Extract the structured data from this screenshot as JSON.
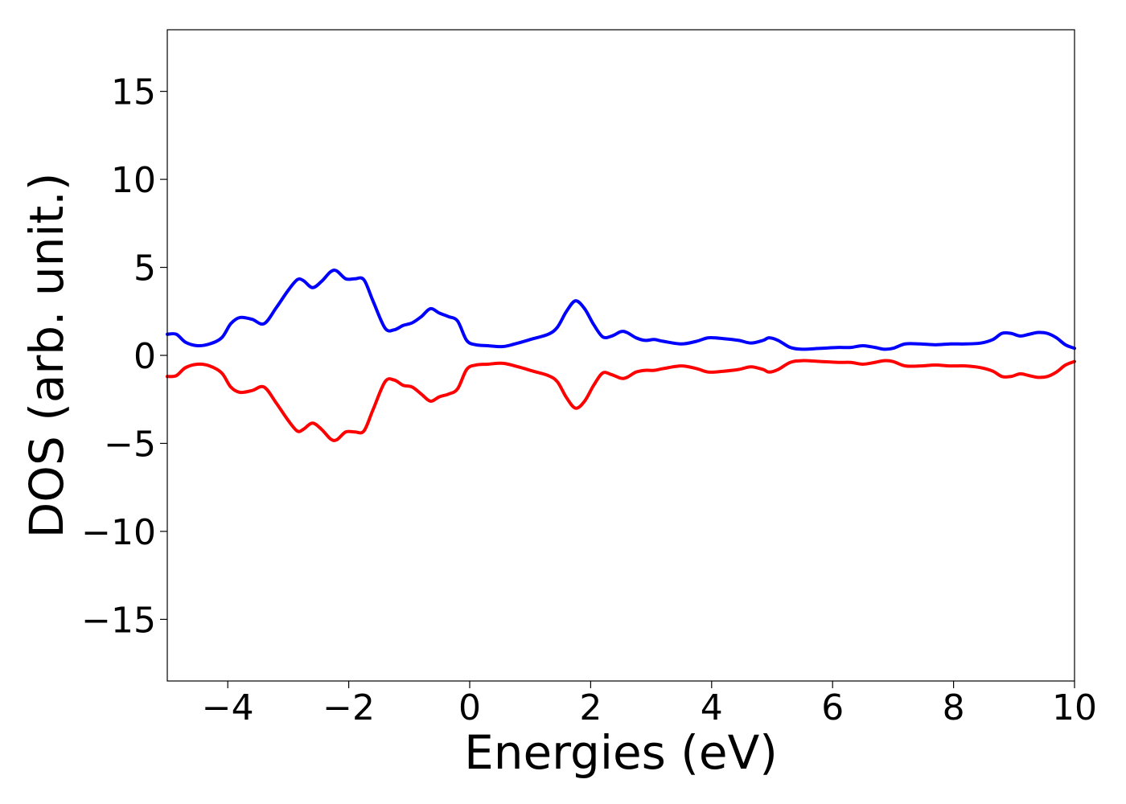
{
  "chart_data": {
    "type": "line",
    "title": "",
    "xlabel": "Energies (eV)",
    "ylabel": "DOS (arb. unit.)",
    "xlim": [
      -5,
      10
    ],
    "ylim": [
      -18.5,
      18.5
    ],
    "xticks": [
      -4,
      -2,
      0,
      2,
      4,
      6,
      8,
      10
    ],
    "yticks": [
      -15,
      -10,
      -5,
      0,
      5,
      10,
      15
    ],
    "xtick_labels": [
      "−4",
      "−2",
      "0",
      "2",
      "4",
      "6",
      "8",
      "10"
    ],
    "ytick_labels": [
      "−15",
      "−10",
      "−5",
      "0",
      "5",
      "10",
      "15"
    ],
    "grid": false,
    "legend": "none",
    "series": [
      {
        "color": "#0000ff",
        "x": [
          -5.0,
          -4.85,
          -4.7,
          -4.5,
          -4.3,
          -4.1,
          -3.95,
          -3.8,
          -3.6,
          -3.4,
          -3.2,
          -3.0,
          -2.85,
          -2.75,
          -2.6,
          -2.45,
          -2.3,
          -2.2,
          -2.05,
          -1.9,
          -1.75,
          -1.6,
          -1.4,
          -1.25,
          -1.1,
          -0.95,
          -0.8,
          -0.65,
          -0.5,
          -0.35,
          -0.2,
          -0.05,
          0.1,
          0.3,
          0.55,
          0.8,
          1.05,
          1.3,
          1.45,
          1.6,
          1.75,
          1.9,
          2.05,
          2.2,
          2.35,
          2.5,
          2.6,
          2.75,
          2.9,
          3.05,
          3.2,
          3.5,
          3.75,
          3.95,
          4.2,
          4.45,
          4.65,
          4.85,
          4.95,
          5.1,
          5.3,
          5.5,
          5.8,
          6.1,
          6.3,
          6.5,
          6.7,
          6.85,
          7.0,
          7.2,
          7.45,
          7.7,
          7.95,
          8.2,
          8.45,
          8.65,
          8.8,
          8.95,
          9.1,
          9.25,
          9.4,
          9.55,
          9.7,
          9.85,
          10.0
        ],
        "values": [
          1.2,
          1.2,
          0.75,
          0.55,
          0.65,
          1.0,
          1.8,
          2.15,
          2.05,
          1.8,
          2.7,
          3.7,
          4.3,
          4.25,
          3.85,
          4.2,
          4.75,
          4.8,
          4.35,
          4.35,
          4.3,
          3.1,
          1.55,
          1.45,
          1.7,
          1.85,
          2.2,
          2.65,
          2.4,
          2.2,
          1.95,
          0.85,
          0.6,
          0.55,
          0.5,
          0.7,
          0.95,
          1.2,
          1.6,
          2.5,
          3.1,
          2.65,
          1.75,
          1.05,
          1.1,
          1.35,
          1.3,
          1.0,
          0.85,
          0.9,
          0.8,
          0.65,
          0.8,
          1.0,
          0.95,
          0.85,
          0.7,
          0.85,
          1.0,
          0.85,
          0.45,
          0.35,
          0.4,
          0.45,
          0.45,
          0.55,
          0.45,
          0.35,
          0.4,
          0.65,
          0.65,
          0.6,
          0.65,
          0.65,
          0.7,
          0.9,
          1.25,
          1.25,
          1.1,
          1.2,
          1.3,
          1.25,
          1.0,
          0.6,
          0.4
        ]
      },
      {
        "color": "#ff0000",
        "x": [
          -5.0,
          -4.85,
          -4.7,
          -4.5,
          -4.3,
          -4.1,
          -3.95,
          -3.8,
          -3.6,
          -3.4,
          -3.2,
          -3.0,
          -2.85,
          -2.75,
          -2.6,
          -2.45,
          -2.3,
          -2.2,
          -2.05,
          -1.9,
          -1.75,
          -1.6,
          -1.4,
          -1.25,
          -1.1,
          -0.95,
          -0.8,
          -0.65,
          -0.5,
          -0.35,
          -0.2,
          -0.05,
          0.1,
          0.3,
          0.55,
          0.8,
          1.05,
          1.3,
          1.45,
          1.6,
          1.75,
          1.9,
          2.05,
          2.2,
          2.35,
          2.5,
          2.6,
          2.75,
          2.9,
          3.05,
          3.2,
          3.5,
          3.75,
          3.95,
          4.2,
          4.45,
          4.65,
          4.85,
          4.95,
          5.1,
          5.3,
          5.5,
          5.8,
          6.1,
          6.3,
          6.5,
          6.7,
          6.85,
          7.0,
          7.2,
          7.45,
          7.7,
          7.95,
          8.2,
          8.45,
          8.65,
          8.8,
          8.95,
          9.1,
          9.25,
          9.4,
          9.55,
          9.7,
          9.85,
          10.0
        ],
        "values": [
          -1.2,
          -1.15,
          -0.7,
          -0.5,
          -0.6,
          -1.0,
          -1.8,
          -2.1,
          -2.0,
          -1.8,
          -2.7,
          -3.7,
          -4.3,
          -4.2,
          -3.85,
          -4.2,
          -4.75,
          -4.8,
          -4.35,
          -4.35,
          -4.3,
          -3.1,
          -1.5,
          -1.4,
          -1.7,
          -1.8,
          -2.2,
          -2.6,
          -2.35,
          -2.2,
          -1.9,
          -0.8,
          -0.55,
          -0.5,
          -0.45,
          -0.65,
          -0.9,
          -1.15,
          -1.5,
          -2.4,
          -3.0,
          -2.6,
          -1.7,
          -1.0,
          -1.1,
          -1.3,
          -1.25,
          -0.95,
          -0.85,
          -0.85,
          -0.75,
          -0.6,
          -0.75,
          -0.95,
          -0.9,
          -0.8,
          -0.65,
          -0.8,
          -0.95,
          -0.8,
          -0.4,
          -0.3,
          -0.35,
          -0.4,
          -0.4,
          -0.5,
          -0.4,
          -0.3,
          -0.35,
          -0.6,
          -0.6,
          -0.55,
          -0.6,
          -0.6,
          -0.7,
          -0.9,
          -1.2,
          -1.2,
          -1.05,
          -1.15,
          -1.25,
          -1.2,
          -0.95,
          -0.55,
          -0.35
        ]
      }
    ]
  }
}
